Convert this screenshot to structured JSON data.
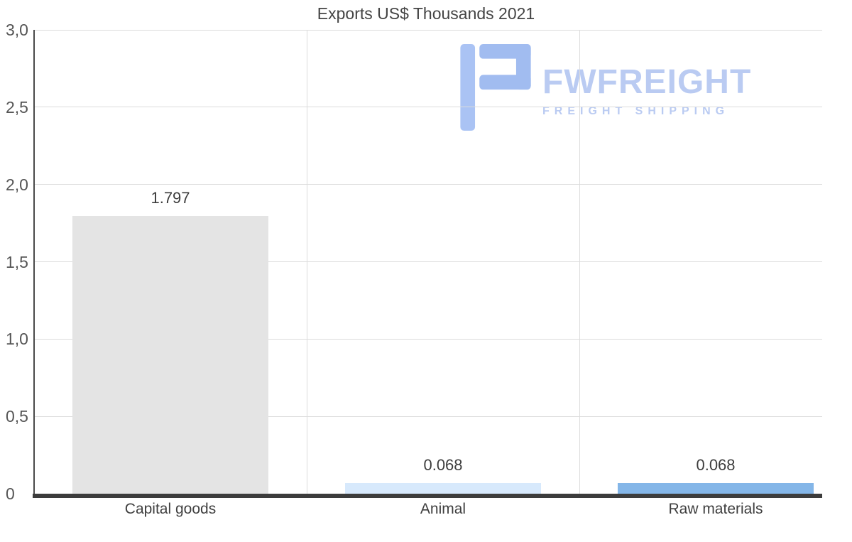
{
  "watermark": {
    "brand": "FWFREIGHT",
    "tagline": "FREIGHT SHIPPING",
    "icon": "freight-logo-icon",
    "color": "#b7c9f2",
    "icon_color": "#9db9f0"
  },
  "chart_data": {
    "type": "bar",
    "title": "Exports US$ Thousands 2021",
    "categories": [
      "Capital goods",
      "Animal",
      "Raw materials"
    ],
    "values": [
      1.797,
      0.068,
      0.068
    ],
    "value_labels": [
      "1.797",
      "0.068",
      "0.068"
    ],
    "bar_colors": [
      "#e4e4e4",
      "#d7e9fc",
      "#84b6e8"
    ],
    "xlabel": "",
    "ylabel": "",
    "ylim": [
      0,
      3.0
    ],
    "ytick_values": [
      3.0,
      2.5,
      2.0,
      1.5,
      1.0,
      0.5,
      0
    ],
    "ytick_labels": [
      "3,0",
      "2,5",
      "2,0",
      "1,5",
      "1,0",
      "0,5",
      "0"
    ],
    "grid": true,
    "legend": "none",
    "background": "#ffffff",
    "gridline_color": "#dcdcdc",
    "axis_color": "#3c3c3c"
  }
}
